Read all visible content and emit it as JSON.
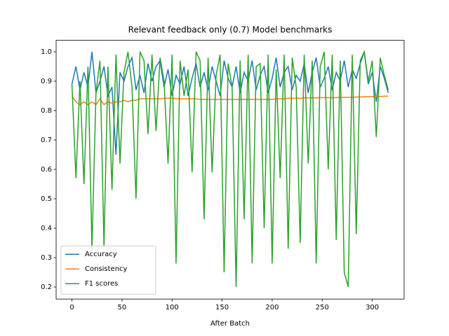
{
  "chart_data": {
    "type": "line",
    "title": "Relevant feedback only (0.7) Model benchmarks",
    "x_label": "After Batch",
    "x": [
      0,
      4,
      8,
      12,
      16,
      20,
      24,
      28,
      32,
      36,
      40,
      44,
      48,
      52,
      56,
      60,
      64,
      68,
      72,
      76,
      80,
      84,
      88,
      92,
      96,
      100,
      104,
      108,
      112,
      116,
      120,
      124,
      128,
      132,
      136,
      140,
      144,
      148,
      152,
      156,
      160,
      164,
      168,
      172,
      176,
      180,
      184,
      188,
      192,
      196,
      200,
      204,
      208,
      212,
      216,
      220,
      224,
      228,
      232,
      236,
      240,
      244,
      248,
      252,
      256,
      260,
      264,
      268,
      272,
      276,
      280,
      284,
      288,
      292,
      296,
      300,
      304,
      308,
      312,
      316
    ],
    "series": [
      {
        "name": "Accuracy",
        "color": "#1f77b4",
        "values": [
          0.89,
          0.95,
          0.87,
          0.93,
          0.88,
          1,
          0.86,
          0.9,
          0.95,
          0.85,
          0.88,
          0.65,
          0.93,
          0.9,
          0.95,
          0.98,
          0.87,
          0.92,
          0.86,
          0.96,
          0.9,
          0.95,
          0.97,
          0.88,
          0.94,
          0.85,
          0.92,
          0.89,
          0.95,
          0.85,
          0.91,
          0.96,
          0.88,
          0.93,
          0.87,
          0.95,
          0.9,
          0.85,
          0.97,
          0.91,
          0.88,
          0.95,
          0.86,
          0.93,
          0.9,
          0.97,
          0.87,
          0.92,
          0.95,
          0.86,
          0.91,
          0.98,
          0.88,
          0.93,
          0.95,
          0.87,
          0.92,
          0.9,
          0.96,
          0.86,
          0.93,
          0.98,
          0.88,
          0.91,
          0.95,
          0.87,
          0.93,
          0.9,
          0.97,
          0.88,
          0.94,
          0.91,
          0.96,
          1,
          0.89,
          0.93,
          0.83,
          0.95,
          0.91,
          0.86
        ]
      },
      {
        "name": "Consistency",
        "color": "#ff7f0e",
        "values": [
          0.85,
          0.83,
          0.82,
          0.83,
          0.82,
          0.83,
          0.82,
          0.84,
          0.82,
          0.83,
          0.825,
          0.83,
          0.83,
          0.835,
          0.83,
          0.835,
          0.835,
          0.84,
          0.84,
          0.84,
          0.84,
          0.84,
          0.84,
          0.842,
          0.842,
          0.842,
          0.841,
          0.84,
          0.84,
          0.84,
          0.84,
          0.84,
          0.838,
          0.838,
          0.838,
          0.838,
          0.838,
          0.838,
          0.838,
          0.838,
          0.838,
          0.838,
          0.838,
          0.838,
          0.838,
          0.838,
          0.838,
          0.838,
          0.838,
          0.838,
          0.838,
          0.84,
          0.84,
          0.84,
          0.842,
          0.842,
          0.842,
          0.842,
          0.843,
          0.843,
          0.843,
          0.843,
          0.844,
          0.844,
          0.844,
          0.844,
          0.844,
          0.845,
          0.845,
          0.845,
          0.845,
          0.846,
          0.846,
          0.847,
          0.847,
          0.848,
          0.848,
          0.848,
          0.849,
          0.849
        ]
      },
      {
        "name": "F1 scores",
        "color": "#2ca02c",
        "values": [
          0.89,
          0.57,
          0.9,
          0.55,
          0.95,
          0.33,
          0.86,
          0.97,
          0.34,
          0.95,
          0.53,
          0.99,
          0.62,
          0.93,
          1,
          0.88,
          0.5,
          1,
          0.97,
          0.72,
          0.99,
          0.73,
          0.98,
          0.9,
          0.62,
          0.99,
          0.28,
          0.97,
          0.85,
          0.94,
          0.59,
          1,
          0.97,
          0.43,
          0.98,
          0.59,
          0.92,
          0.99,
          0.25,
          0.96,
          0.88,
          0.2,
          0.97,
          0.43,
          0.99,
          0.28,
          0.95,
          0.96,
          0.4,
          0.99,
          0.28,
          0.94,
          0.57,
          0.99,
          0.33,
          0.98,
          0.88,
          0.35,
          0.99,
          0.62,
          0.97,
          0.28,
          0.95,
          1,
          0.6,
          0.99,
          0.36,
          0.97,
          0.25,
          0.2,
          0.99,
          0.38,
          0.97,
          1,
          0.9,
          0.97,
          0.71,
          0.98,
          0.92,
          0.87
        ]
      }
    ],
    "xlim": [
      -15.8,
      331.8
    ],
    "ylim": [
      0.159,
      1.039
    ],
    "xticks": [
      0,
      50,
      100,
      150,
      200,
      250,
      300
    ],
    "yticks": [
      0.2,
      0.3,
      0.4,
      0.5,
      0.6,
      0.7,
      0.8,
      0.9,
      {
        "value": 1,
        "label": "1.0"
      }
    ],
    "legend": "lower left"
  }
}
